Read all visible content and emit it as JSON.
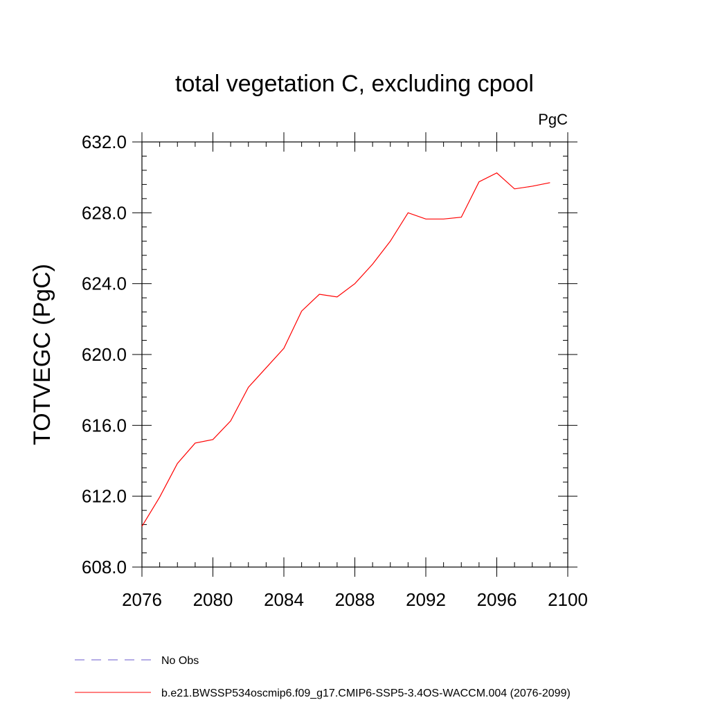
{
  "chart_data": {
    "type": "line",
    "title": "total vegetation C, excluding cpool",
    "units_label": "PgC",
    "ylabel": "TOTVEGC  (PgC)",
    "xlabel": "",
    "xlim": [
      2076,
      2100
    ],
    "ylim": [
      608.0,
      632.0
    ],
    "x_ticks": [
      2076,
      2080,
      2084,
      2088,
      2092,
      2096,
      2100
    ],
    "x_tick_labels": [
      "2076",
      "2080",
      "2084",
      "2088",
      "2092",
      "2096",
      "2100"
    ],
    "y_ticks": [
      608.0,
      612.0,
      616.0,
      620.0,
      624.0,
      628.0,
      632.0
    ],
    "y_tick_labels": [
      "608.0",
      "612.0",
      "616.0",
      "620.0",
      "624.0",
      "628.0",
      "632.0"
    ],
    "grid": false,
    "legend_position": "bottom",
    "series": [
      {
        "name": "b.e21.BWSSP534oscmip6.f09_g17.CMIP6-SSP5-3.4OS-WACCM.004 (2076-2099)",
        "color": "#ff0000",
        "style": "solid",
        "x": [
          2076,
          2077,
          2078,
          2079,
          2080,
          2081,
          2082,
          2083,
          2084,
          2085,
          2086,
          2087,
          2088,
          2089,
          2090,
          2091,
          2092,
          2093,
          2094,
          2095,
          2096,
          2097,
          2098,
          2099
        ],
        "y": [
          610.3,
          611.95,
          613.85,
          615.0,
          615.2,
          616.25,
          618.15,
          619.25,
          620.35,
          622.45,
          623.4,
          623.25,
          624.0,
          625.1,
          626.4,
          628.0,
          627.65,
          627.65,
          627.75,
          629.75,
          630.25,
          629.35,
          629.5,
          629.7
        ]
      },
      {
        "name": "No Obs",
        "color": "#6a5acd",
        "style": "dashed",
        "x": [],
        "y": []
      }
    ]
  }
}
